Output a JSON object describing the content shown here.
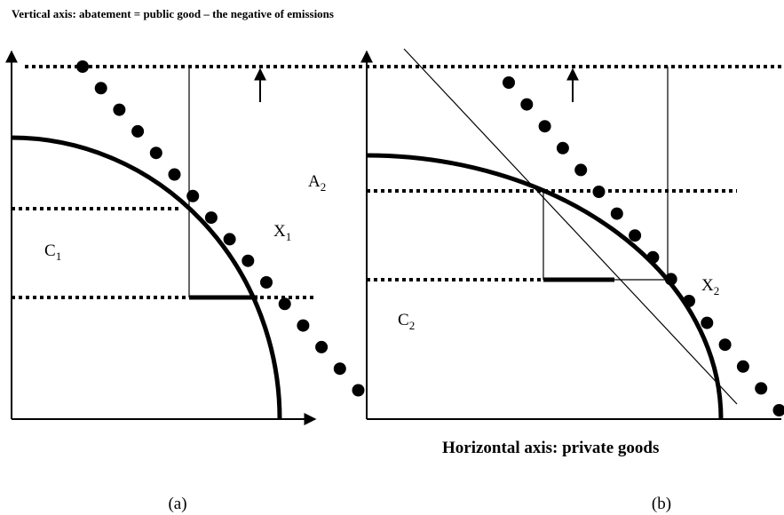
{
  "header": {
    "title": "Vertical axis: abatement = public good – the negative of emissions"
  },
  "labels": [
    {
      "text": "A",
      "sub": "2"
    },
    {
      "text": "X",
      "sub": "1"
    },
    {
      "text": "C",
      "sub": "1"
    },
    {
      "text": "X",
      "sub": "2"
    },
    {
      "text": "C",
      "sub": "2"
    }
  ],
  "x_axis_label": "Horizontal axis: private goods",
  "panels": [
    "(a)",
    "(b)"
  ]
}
